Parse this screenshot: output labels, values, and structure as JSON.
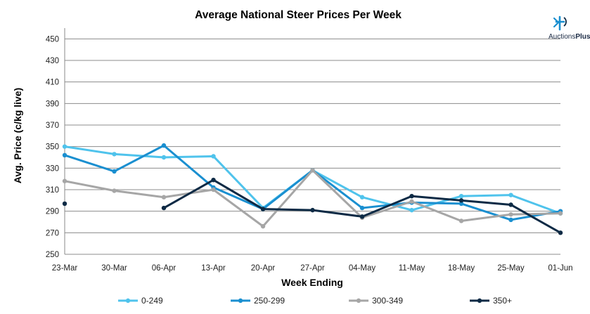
{
  "chart_data": {
    "type": "line",
    "title": "Average National Steer Prices Per Week",
    "xlabel": "Week Ending",
    "ylabel": "Avg. Price (c/kg live)",
    "ylim": [
      250,
      460
    ],
    "yticks": [
      250,
      270,
      290,
      310,
      330,
      350,
      370,
      390,
      410,
      430,
      450
    ],
    "categories": [
      "23-Mar",
      "30-Mar",
      "06-Apr",
      "13-Apr",
      "20-Apr",
      "27-Apr",
      "04-May",
      "11-May",
      "18-May",
      "25-May",
      "01-Jun"
    ],
    "grid": true,
    "legend_position": "bottom",
    "series": [
      {
        "name": "0-249",
        "color": "#4fc3ec",
        "values": [
          350,
          343,
          340,
          341,
          293,
          328,
          303,
          291,
          304,
          305,
          288
        ]
      },
      {
        "name": "250-299",
        "color": "#1a8fd0",
        "values": [
          342,
          327,
          351,
          312,
          292,
          328,
          293,
          298,
          297,
          282,
          290
        ]
      },
      {
        "name": "300-349",
        "color": "#a6a6a6",
        "values": [
          318,
          309,
          303,
          310,
          276,
          328,
          284,
          299,
          281,
          287,
          288
        ]
      },
      {
        "name": "350+",
        "color": "#0d2a45",
        "values": [
          297,
          null,
          293,
          319,
          292,
          291,
          285,
          304,
          300,
          296,
          270
        ]
      }
    ]
  },
  "logo": {
    "text_regular": "Auctions",
    "text_bold": "Plus",
    "color": "#1a8fd0",
    "icon": "auctionsplus-logo-icon"
  }
}
